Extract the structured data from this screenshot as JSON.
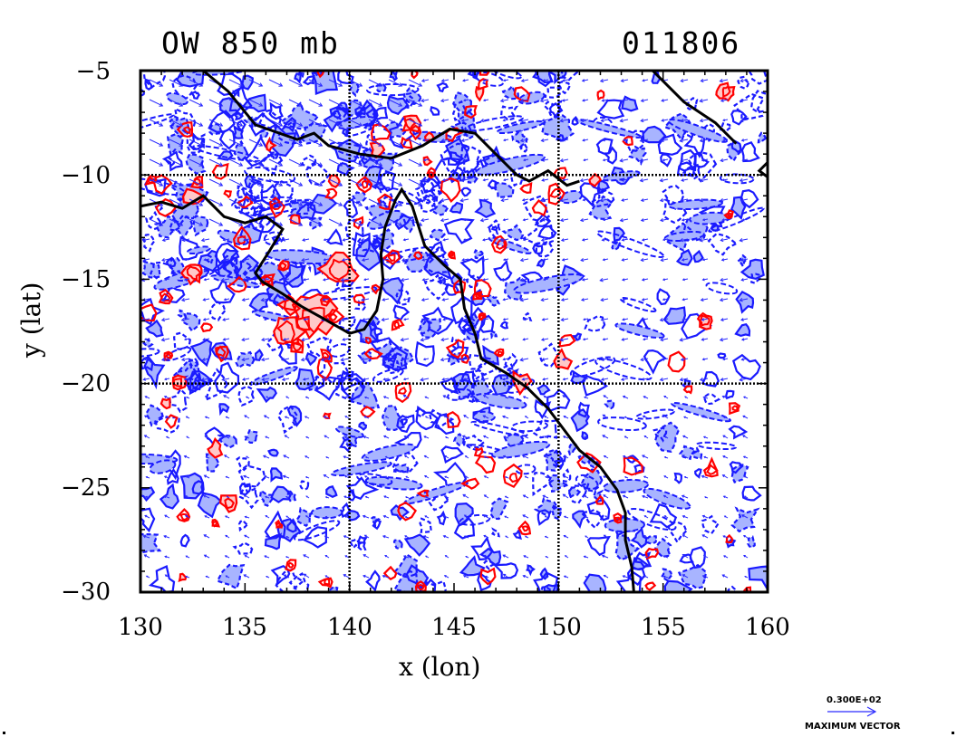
{
  "header": {
    "field_title": "OW 850 mb",
    "datetime": "011806"
  },
  "axes": {
    "x_label": "x (lon)",
    "y_label": "y (lat)",
    "x_ticks": [
      "130",
      "135",
      "140",
      "145",
      "150",
      "155",
      "160"
    ],
    "y_ticks": [
      "−5",
      "−10",
      "−15",
      "−20",
      "−25",
      "−30"
    ]
  },
  "map": {
    "lon_range": [
      130,
      160
    ],
    "lat_range": [
      -30,
      -5
    ],
    "gridlines_lon": [
      140,
      150
    ],
    "gridlines_lat": [
      -10,
      -20
    ],
    "coastline_color": "#000000",
    "positive_ow_color": "#ff0000",
    "positive_ow_fill": "#ffc8c8",
    "negative_ow_color": "#1a1aff",
    "negative_ow_fill": "#a8b4ff",
    "vector_color": "#2a2aff"
  },
  "legend": {
    "vector_magnitude": "0.300E+02",
    "vector_label": "MAXIMUM VECTOR"
  }
}
